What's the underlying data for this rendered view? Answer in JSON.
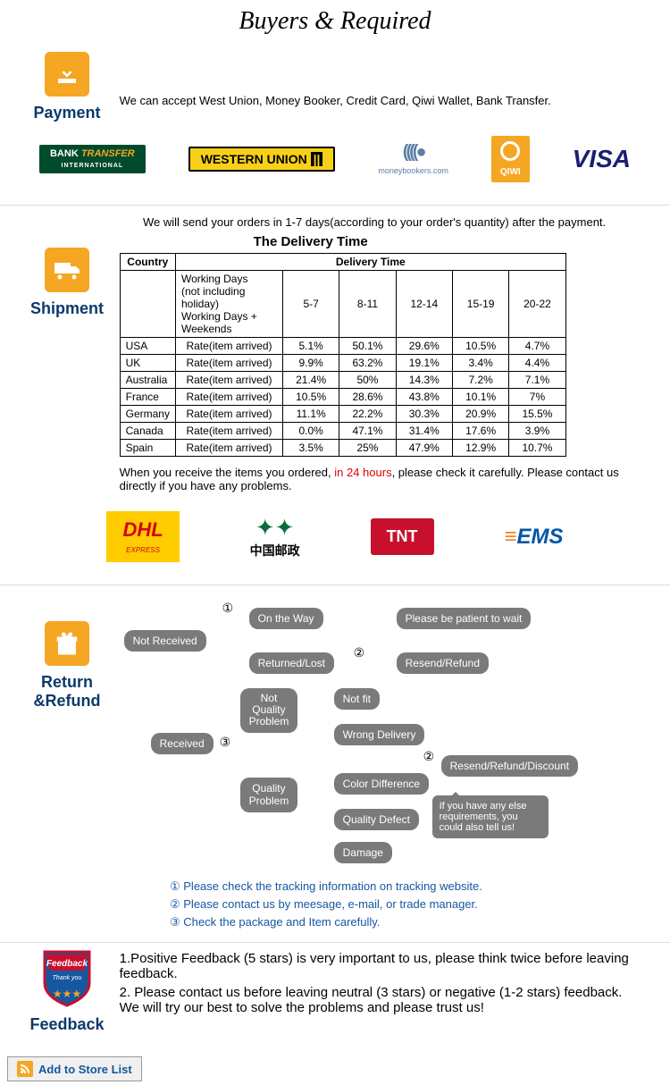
{
  "header": {
    "title": "Buyers & Required"
  },
  "payment": {
    "title": "Payment",
    "desc": "We can accept West Union, Money Booker, Credit Card, Qiwi Wallet, Bank Transfer.",
    "logos": {
      "bank": "BANK TRANSFER",
      "bank_sub": "INTERNATIONAL",
      "wu": "WESTERN UNION",
      "mb": "moneybookers.com",
      "qiwi": "QIWI",
      "visa": "VISA"
    }
  },
  "shipment": {
    "title": "Shipment",
    "desc": "We will send your orders in 1-7 days(according to your order's quantity) after the payment.",
    "table_title": "The Delivery Time",
    "cols": {
      "country": "Country",
      "dt": "Delivery Time"
    },
    "header_row": {
      "wd1": "Working Days",
      "wd2": "(not including holiday)",
      "wd3": "Working Days + Weekends",
      "c1": "5-7",
      "c2": "8-11",
      "c3": "12-14",
      "c4": "15-19",
      "c5": "20-22"
    },
    "rate_label": "Rate(item arrived)",
    "rows": [
      {
        "country": "USA",
        "v": [
          "5.1%",
          "50.1%",
          "29.6%",
          "10.5%",
          "4.7%"
        ]
      },
      {
        "country": "UK",
        "v": [
          "9.9%",
          "63.2%",
          "19.1%",
          "3.4%",
          "4.4%"
        ]
      },
      {
        "country": "Australia",
        "v": [
          "21.4%",
          "50%",
          "14.3%",
          "7.2%",
          "7.1%"
        ]
      },
      {
        "country": "France",
        "v": [
          "10.5%",
          "28.6%",
          "43.8%",
          "10.1%",
          "7%"
        ]
      },
      {
        "country": "Germany",
        "v": [
          "11.1%",
          "22.2%",
          "30.3%",
          "20.9%",
          "15.5%"
        ]
      },
      {
        "country": "Canada",
        "v": [
          "0.0%",
          "47.1%",
          "31.4%",
          "17.6%",
          "3.9%"
        ]
      },
      {
        "country": "Spain",
        "v": [
          "3.5%",
          "25%",
          "47.9%",
          "12.9%",
          "10.7%"
        ]
      }
    ],
    "note1": "When you receive the items you ordered, ",
    "note_hl": "in 24 hours",
    "note2": ", please check it carefully. Please contact us directly if you have any problems.",
    "couriers": {
      "dhl": "DHL",
      "dhl_sub": "EXPRESS",
      "cp": "中国邮政",
      "tnt": "TNT",
      "ems": "EMS"
    }
  },
  "return": {
    "title": "Return &Refund",
    "nodes": {
      "not_received": "Not Received",
      "on_way": "On the Way",
      "patient": "Please be patient to wait",
      "returned": "Returned/Lost",
      "resend1": "Resend/Refund",
      "received": "Received",
      "nqp": "Not\nQuality\nProblem",
      "not_fit": "Not fit",
      "wrong": "Wrong Delivery",
      "qp": "Quality\nProblem",
      "color": "Color Difference",
      "defect": "Quality Defect",
      "damage": "Damage",
      "resend2": "Resend/Refund/Discount",
      "speech": "If you have any else requirements, you could also tell us!"
    },
    "nums": {
      "n1": "①",
      "n2": "②",
      "n3": "③"
    },
    "tips": {
      "t1": "① Please check the tracking information on tracking website.",
      "t2": "② Please contact us by meesage, e-mail, or trade manager.",
      "t3": "③ Check the package and Item carefully."
    }
  },
  "feedback": {
    "title": "Feedback",
    "badge": "Feedback",
    "badge_sub": "Thank you",
    "p1": "1.Positive Feedback (5 stars) is very important to us, please think twice before leaving feedback.",
    "p2": "2. Please contact us before leaving neutral (3 stars) or negative (1-2 stars) feedback. We will try our best to solve the problems and please trust us!"
  },
  "store_btn": "Add to Store List",
  "colors": {
    "orange": "#f5a623",
    "navy": "#0b3a6b",
    "gray": "#7a7a7a",
    "wu_bg": "#f7d117",
    "bank_bg": "#004b2b",
    "qiwi_bg": "#0071bc",
    "visa": "#1a1f71",
    "dhl_bg": "#ffcc00",
    "dhl_red": "#d40511",
    "tnt_bg": "#c8102e",
    "ems_blue": "#0057a8",
    "ems_orange": "#f58220"
  }
}
